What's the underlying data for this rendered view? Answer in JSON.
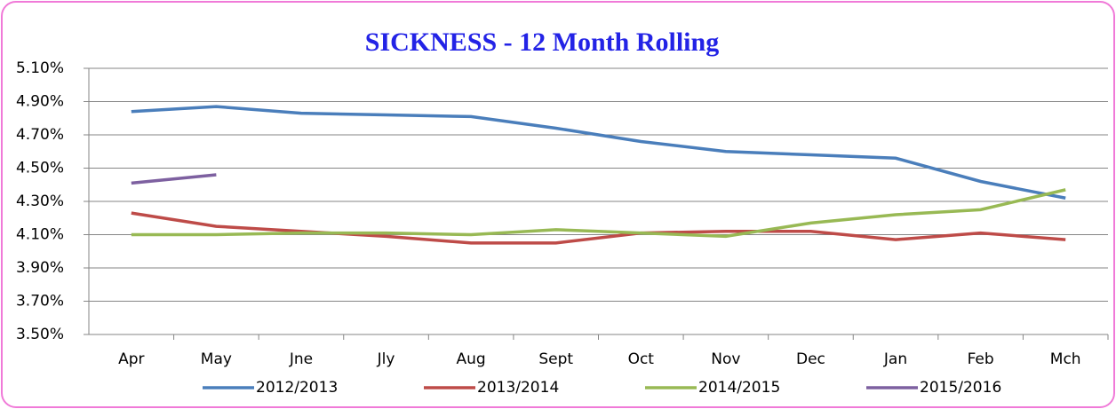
{
  "chart_data": {
    "type": "line",
    "title": "SICKNESS - 12 Month Rolling",
    "categories": [
      "Apr",
      "May",
      "Jne",
      "Jly",
      "Aug",
      "Sept",
      "Oct",
      "Nov",
      "Dec",
      "Jan",
      "Feb",
      "Mch"
    ],
    "series": [
      {
        "name": "2012/2013",
        "color": "#4a7ebb",
        "values": [
          4.84,
          4.87,
          4.83,
          4.82,
          4.81,
          4.74,
          4.66,
          4.6,
          4.58,
          4.56,
          4.42,
          4.32
        ]
      },
      {
        "name": "2013/2014",
        "color": "#be4b48",
        "values": [
          4.23,
          4.15,
          4.12,
          4.09,
          4.05,
          4.05,
          4.11,
          4.12,
          4.12,
          4.07,
          4.11,
          4.07
        ]
      },
      {
        "name": "2014/2015",
        "color": "#98b954",
        "values": [
          4.1,
          4.1,
          4.11,
          4.11,
          4.1,
          4.13,
          4.11,
          4.09,
          4.17,
          4.22,
          4.25,
          4.37
        ]
      },
      {
        "name": "2015/2016",
        "color": "#7d60a0",
        "values": [
          4.41,
          4.46,
          null,
          null,
          null,
          null,
          null,
          null,
          null,
          null,
          null,
          null
        ]
      }
    ],
    "ylim": [
      3.5,
      5.1
    ],
    "yticks": [
      {
        "value": 3.5,
        "label": "3.50%"
      },
      {
        "value": 3.7,
        "label": "3.70%"
      },
      {
        "value": 3.9,
        "label": "3.90%"
      },
      {
        "value": 4.1,
        "label": "4.10%"
      },
      {
        "value": 4.3,
        "label": "4.30%"
      },
      {
        "value": 4.5,
        "label": "4.50%"
      },
      {
        "value": 4.7,
        "label": "4.70%"
      },
      {
        "value": 4.9,
        "label": "4.90%"
      },
      {
        "value": 5.1,
        "label": "5.10%"
      }
    ],
    "grid": true,
    "legend": "bottom"
  }
}
